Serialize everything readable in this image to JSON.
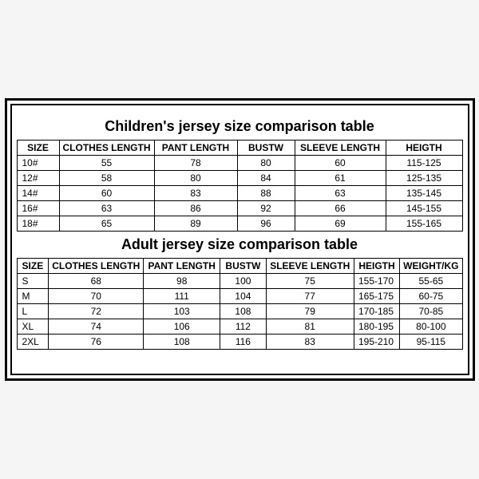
{
  "children_table": {
    "title": "Children's jersey size comparison table",
    "title_fontsize": 18,
    "columns": [
      "SIZE",
      "CLOTHES LENGTH",
      "PANT LENGTH",
      "BUSTW",
      "SLEEVE LENGTH",
      "HEIGTH"
    ],
    "rows": [
      [
        "10#",
        "55",
        "78",
        "80",
        "60",
        "115-125"
      ],
      [
        "12#",
        "58",
        "80",
        "84",
        "61",
        "125-135"
      ],
      [
        "14#",
        "60",
        "83",
        "88",
        "63",
        "135-145"
      ],
      [
        "16#",
        "63",
        "86",
        "92",
        "66",
        "145-155"
      ],
      [
        "18#",
        "65",
        "89",
        "96",
        "69",
        "155-165"
      ]
    ],
    "border_color": "#000000",
    "background_color": "#ffffff",
    "font_size": 12
  },
  "adult_table": {
    "title": "Adult jersey size comparison table",
    "title_fontsize": 18,
    "columns": [
      "SIZE",
      "CLOTHES LENGTH",
      "PANT LENGTH",
      "BUSTW",
      "SLEEVE LENGTH",
      "HEIGTH",
      "WEIGHT/KG"
    ],
    "rows": [
      [
        "S",
        "68",
        "98",
        "100",
        "75",
        "155-170",
        "55-65"
      ],
      [
        "M",
        "70",
        "111",
        "104",
        "77",
        "165-175",
        "60-75"
      ],
      [
        "L",
        "72",
        "103",
        "108",
        "79",
        "170-185",
        "70-85"
      ],
      [
        "XL",
        "74",
        "106",
        "112",
        "81",
        "180-195",
        "80-100"
      ],
      [
        "2XL",
        "76",
        "108",
        "116",
        "83",
        "195-210",
        "95-115"
      ]
    ],
    "border_color": "#000000",
    "background_color": "#ffffff",
    "font_size": 12
  }
}
